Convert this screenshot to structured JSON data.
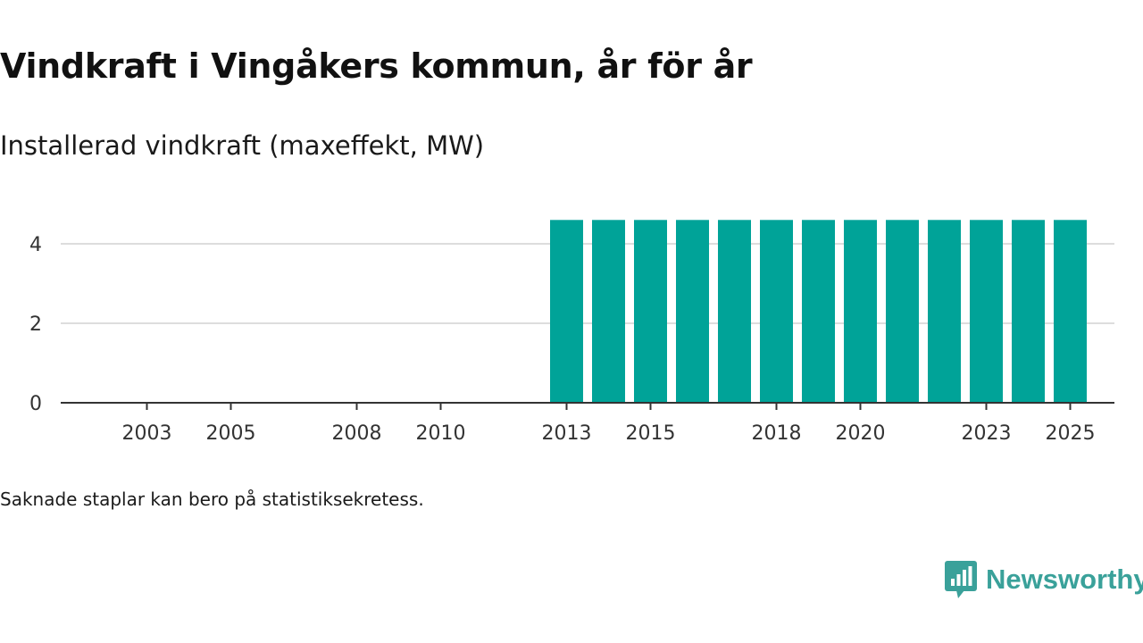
{
  "chart_data": {
    "type": "bar",
    "title": "Vindkraft i Vingåkers kommun, år för år",
    "subtitle": "Installerad vindkraft (maxeffekt, MW)",
    "xlabel": "",
    "ylabel": "",
    "categories": [
      "2002",
      "2003",
      "2004",
      "2005",
      "2006",
      "2007",
      "2008",
      "2009",
      "2010",
      "2011",
      "2012",
      "2013",
      "2014",
      "2015",
      "2016",
      "2017",
      "2018",
      "2019",
      "2020",
      "2021",
      "2022",
      "2023",
      "2024",
      "2025"
    ],
    "values": [
      0,
      0,
      0,
      0,
      0,
      0,
      0,
      0,
      0,
      0,
      0,
      4.6,
      4.6,
      4.6,
      4.6,
      4.6,
      4.6,
      4.6,
      4.6,
      4.6,
      4.6,
      4.6,
      4.6,
      4.6
    ],
    "x_tick_labels": [
      "2003",
      "2005",
      "2008",
      "2010",
      "2013",
      "2015",
      "2018",
      "2020",
      "2023",
      "2025"
    ],
    "y_ticks": [
      0,
      2,
      4
    ],
    "ylim": [
      0,
      5
    ],
    "grid": true,
    "legend": "none",
    "footnote": "Saknade staplar kan bero på statistiksekretess.",
    "bar_color": "#00a398",
    "grid_color": "#dddddd",
    "axis_color": "#333333"
  },
  "brand": {
    "name": "Newsworthy",
    "color": "#3aa19a",
    "icon": "newsworthy-logo-icon"
  }
}
